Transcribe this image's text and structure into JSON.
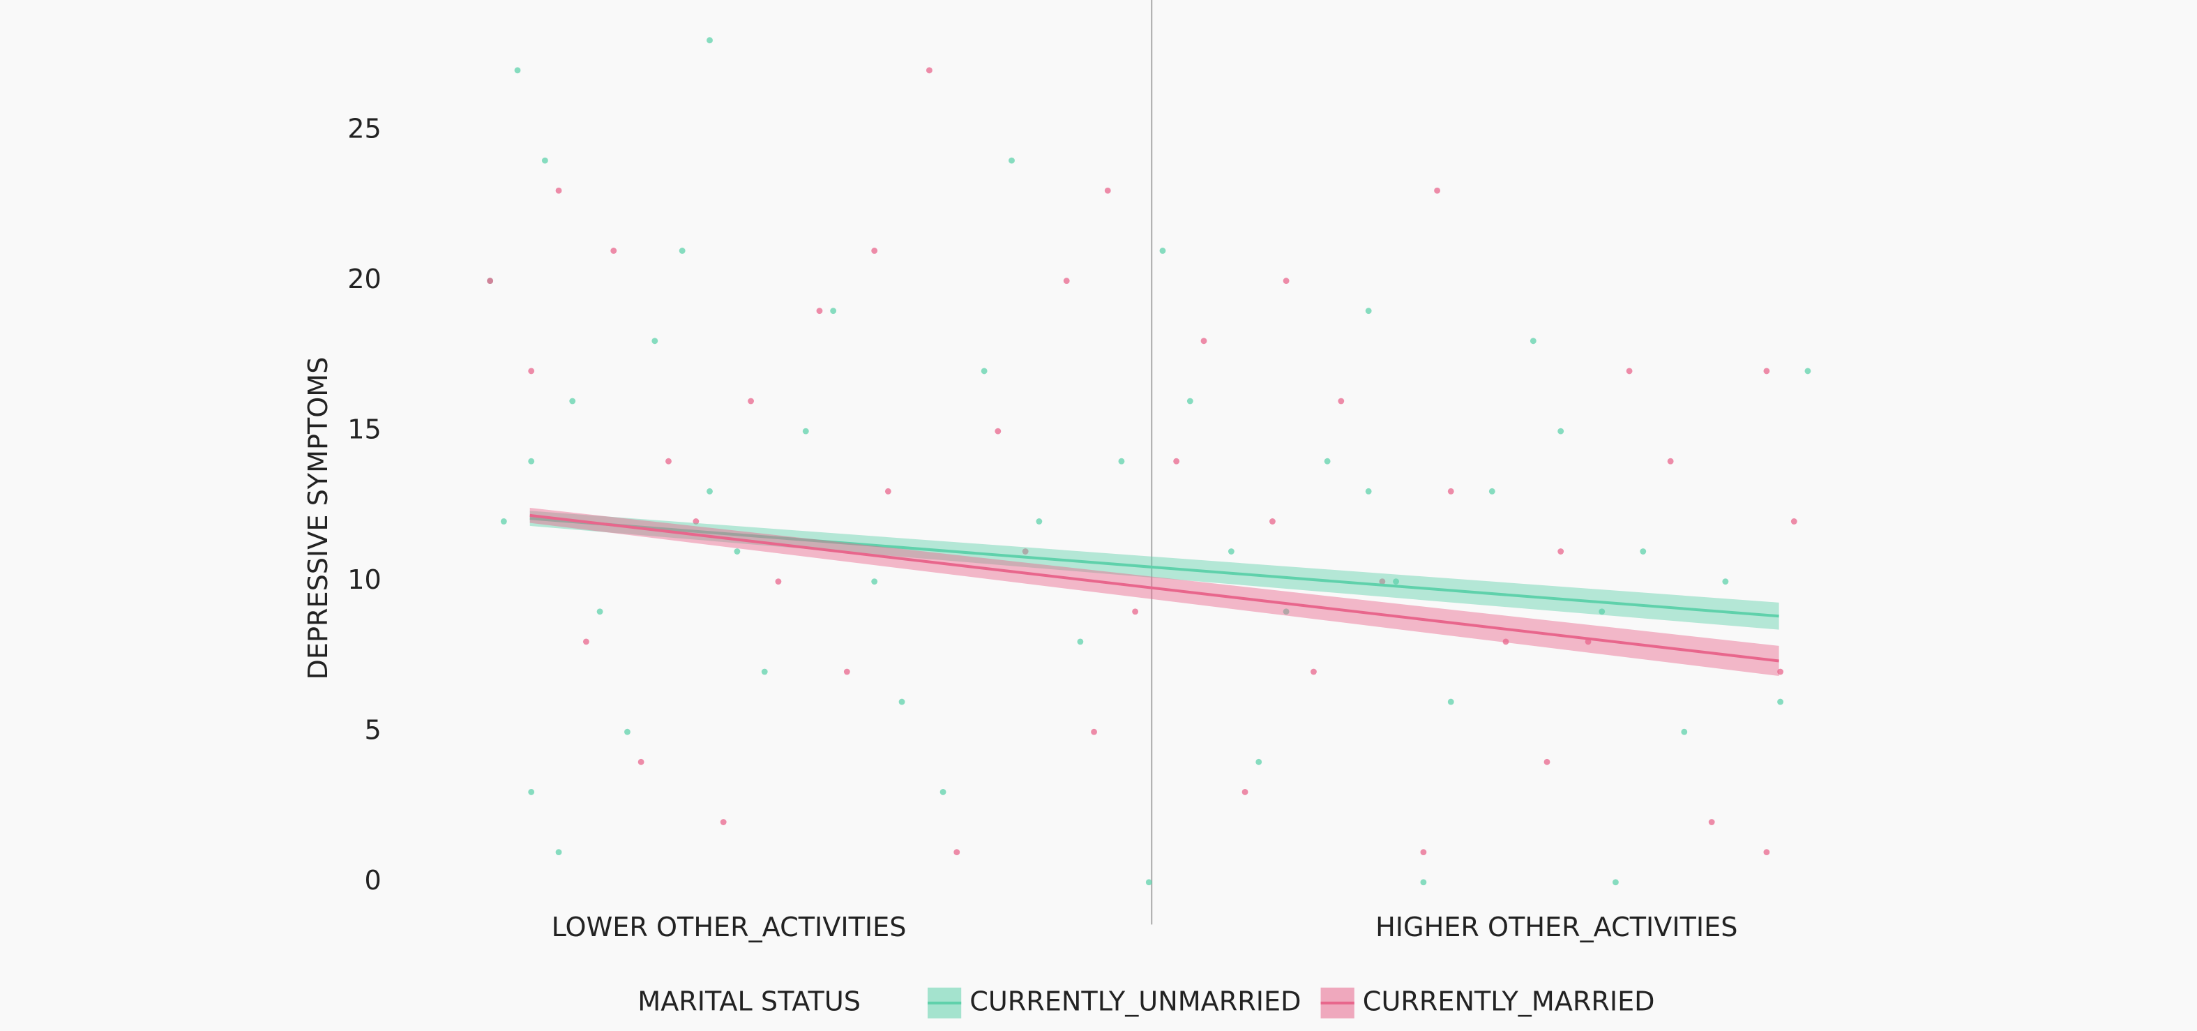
{
  "chart_data": {
    "type": "scatter",
    "y_label": "DEPRESSIVE SYMPTOMS",
    "legend_title": "MARITAL STATUS",
    "xlim": [
      0,
      1
    ],
    "ylim": [
      -1.5,
      28.5
    ],
    "yticks": [
      0,
      5,
      10,
      15,
      20,
      25
    ],
    "xticks": [
      {
        "value": 0.194,
        "label": "LOWER OTHER_ACTIVITIES"
      },
      {
        "value": 0.797,
        "label": "HIGHER OTHER_ACTIVITIES"
      }
    ],
    "vline_x": 0.502,
    "series": [
      {
        "name": "CURRENTLY_UNMARRIED",
        "color": "#5fd1ab",
        "x": [
          0.03,
          0.05,
          0.02,
          0.04,
          0.06,
          0.08,
          0.1,
          0.12,
          0.05,
          0.07,
          0.14,
          0.16,
          0.18,
          0.2,
          0.22,
          0.25,
          0.27,
          0.3,
          0.32,
          0.35,
          0.38,
          0.4,
          0.42,
          0.45,
          0.48,
          0.5,
          0.51,
          0.53,
          0.56,
          0.58,
          0.6,
          0.63,
          0.66,
          0.68,
          0.7,
          0.72,
          0.75,
          0.78,
          0.8,
          0.83,
          0.86,
          0.89,
          0.92,
          0.96,
          0.98,
          0.66,
          0.84,
          0.18
        ],
        "y": [
          12,
          14,
          20,
          27,
          24,
          16,
          9,
          5,
          3,
          1,
          18,
          21,
          13,
          11,
          7,
          15,
          19,
          10,
          6,
          3,
          17,
          24,
          12,
          8,
          14,
          0,
          21,
          16,
          11,
          4,
          9,
          14,
          19,
          10,
          0,
          6,
          13,
          18,
          15,
          9,
          11,
          5,
          10,
          6,
          17,
          13,
          0,
          28
        ],
        "fit": {
          "x": [
            0.049,
            0.959
          ],
          "y": [
            12.1,
            8.85
          ],
          "lower": [
            11.85,
            8.4
          ],
          "upper": [
            12.35,
            9.3
          ]
        }
      },
      {
        "name": "CURRENTLY_MARRIED",
        "color": "#e8668c",
        "x": [
          0.02,
          0.05,
          0.07,
          0.09,
          0.11,
          0.13,
          0.15,
          0.17,
          0.19,
          0.21,
          0.23,
          0.26,
          0.28,
          0.31,
          0.34,
          0.36,
          0.39,
          0.41,
          0.44,
          0.46,
          0.47,
          0.49,
          0.52,
          0.54,
          0.57,
          0.59,
          0.62,
          0.64,
          0.67,
          0.7,
          0.72,
          0.76,
          0.79,
          0.8,
          0.82,
          0.85,
          0.88,
          0.91,
          0.95,
          0.96,
          0.97,
          0.95,
          0.71,
          0.6,
          0.3
        ],
        "y": [
          20,
          17,
          23,
          8,
          21,
          4,
          14,
          12,
          2,
          16,
          10,
          19,
          7,
          13,
          27,
          1,
          15,
          11,
          20,
          5,
          23,
          9,
          14,
          18,
          3,
          12,
          7,
          16,
          10,
          1,
          13,
          8,
          4,
          11,
          8,
          17,
          14,
          2,
          17,
          7,
          12,
          1,
          23,
          20,
          21
        ],
        "fit": {
          "x": [
            0.049,
            0.959
          ],
          "y": [
            12.2,
            7.36
          ],
          "lower": [
            11.95,
            6.86
          ],
          "upper": [
            12.45,
            7.86
          ]
        }
      }
    ]
  }
}
